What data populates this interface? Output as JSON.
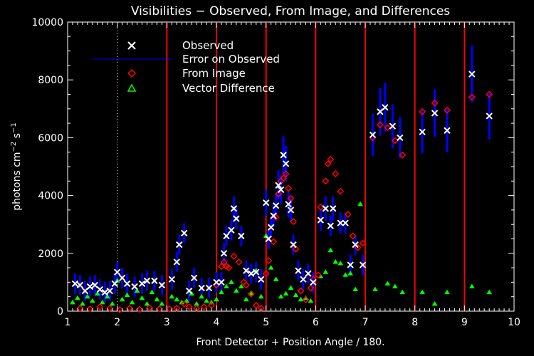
{
  "chart_data": {
    "type": "scatter",
    "title": "Visibilities − Observed, From Image, and Differences",
    "xlabel": "Front Detector + Position Angle / 180.",
    "ylabel_main": "photons cm",
    "ylabel_exp1": "−2",
    "ylabel_mid": " s",
    "ylabel_exp2": "−1",
    "xlim": [
      1,
      10
    ],
    "ylim": [
      0,
      10000
    ],
    "x_ticks": [
      "1",
      "2",
      "3",
      "4",
      "5",
      "6",
      "7",
      "8",
      "9",
      "10"
    ],
    "y_ticks": [
      "0",
      "2000",
      "4000",
      "6000",
      "8000",
      "10000"
    ],
    "red_vertical_lines": [
      3,
      4,
      5,
      6,
      7,
      8,
      9
    ],
    "dotted_vertical_line": 2,
    "colors": {
      "observed": "#ffffff",
      "error": "#0000ff",
      "image": "#ff0000",
      "difference": "#00ff00",
      "frame": "#ffffff",
      "detector_lines": "#ff0000"
    },
    "legend": {
      "placement": "top-left",
      "entries": [
        "Observed",
        "Error on Observed",
        "From Image",
        "Vector Difference"
      ]
    },
    "series": [
      {
        "name": "Observed",
        "marker": "x",
        "points": [
          [
            1.15,
            950
          ],
          [
            1.25,
            900
          ],
          [
            1.35,
            700
          ],
          [
            1.45,
            850
          ],
          [
            1.55,
            900
          ],
          [
            1.65,
            750
          ],
          [
            1.75,
            650
          ],
          [
            1.85,
            700
          ],
          [
            1.95,
            950
          ],
          [
            2.0,
            1350
          ],
          [
            2.1,
            1150
          ],
          [
            2.2,
            950
          ],
          [
            2.35,
            850
          ],
          [
            2.5,
            950
          ],
          [
            2.6,
            1050
          ],
          [
            2.75,
            1050
          ],
          [
            2.9,
            900
          ],
          [
            3.1,
            1100
          ],
          [
            3.2,
            1700
          ],
          [
            3.25,
            2300
          ],
          [
            3.35,
            2700
          ],
          [
            3.45,
            700
          ],
          [
            3.55,
            1150
          ],
          [
            3.7,
            800
          ],
          [
            3.85,
            800
          ],
          [
            4.0,
            1000
          ],
          [
            4.1,
            1000
          ],
          [
            4.15,
            2000
          ],
          [
            4.2,
            2600
          ],
          [
            4.3,
            2800
          ],
          [
            4.35,
            3550
          ],
          [
            4.4,
            3200
          ],
          [
            4.5,
            2600
          ],
          [
            4.6,
            1400
          ],
          [
            4.7,
            1300
          ],
          [
            4.8,
            1350
          ],
          [
            4.9,
            1100
          ],
          [
            5.0,
            3750
          ],
          [
            5.05,
            2500
          ],
          [
            5.1,
            2900
          ],
          [
            5.15,
            3300
          ],
          [
            5.2,
            3650
          ],
          [
            5.25,
            4350
          ],
          [
            5.3,
            4200
          ],
          [
            5.35,
            5400
          ],
          [
            5.4,
            5100
          ],
          [
            5.45,
            3700
          ],
          [
            5.5,
            3500
          ],
          [
            5.55,
            2300
          ],
          [
            5.65,
            1400
          ],
          [
            5.75,
            1100
          ],
          [
            5.85,
            1300
          ],
          [
            5.95,
            1000
          ],
          [
            6.1,
            3150
          ],
          [
            6.2,
            3550
          ],
          [
            6.3,
            2950
          ],
          [
            6.35,
            3550
          ],
          [
            6.5,
            3050
          ],
          [
            6.6,
            3050
          ],
          [
            6.7,
            1600
          ],
          [
            6.8,
            2300
          ],
          [
            6.95,
            1600
          ],
          [
            7.15,
            6100
          ],
          [
            7.3,
            6900
          ],
          [
            7.4,
            7050
          ],
          [
            7.55,
            6400
          ],
          [
            7.7,
            6000
          ],
          [
            8.15,
            6200
          ],
          [
            8.4,
            6850
          ],
          [
            8.65,
            6250
          ],
          [
            9.15,
            8200
          ],
          [
            9.5,
            6750
          ]
        ]
      },
      {
        "name": "From Image",
        "marker": "diamond",
        "points": [
          [
            1.25,
            100
          ],
          [
            1.45,
            80
          ],
          [
            1.65,
            150
          ],
          [
            1.85,
            100
          ],
          [
            2.05,
            50
          ],
          [
            2.25,
            100
          ],
          [
            2.45,
            60
          ],
          [
            2.65,
            120
          ],
          [
            2.85,
            80
          ],
          [
            3.05,
            80
          ],
          [
            3.2,
            100
          ],
          [
            3.35,
            250
          ],
          [
            3.45,
            150
          ],
          [
            3.6,
            100
          ],
          [
            3.75,
            150
          ],
          [
            3.9,
            200
          ],
          [
            4.0,
            900
          ],
          [
            4.1,
            1550
          ],
          [
            4.15,
            1700
          ],
          [
            4.2,
            1550
          ],
          [
            4.25,
            1500
          ],
          [
            4.35,
            1900
          ],
          [
            4.45,
            1700
          ],
          [
            4.55,
            1000
          ],
          [
            4.6,
            900
          ],
          [
            4.7,
            600
          ],
          [
            4.8,
            200
          ],
          [
            4.9,
            100
          ],
          [
            5.0,
            1300
          ],
          [
            5.05,
            1750
          ],
          [
            5.15,
            2400
          ],
          [
            5.2,
            3250
          ],
          [
            5.25,
            4050
          ],
          [
            5.3,
            4500
          ],
          [
            5.35,
            4600
          ],
          [
            5.4,
            4750
          ],
          [
            5.45,
            4250
          ],
          [
            5.5,
            3900
          ],
          [
            5.55,
            3100
          ],
          [
            5.6,
            2150
          ],
          [
            5.7,
            700
          ],
          [
            5.8,
            400
          ],
          [
            5.9,
            800
          ],
          [
            5.95,
            1100
          ],
          [
            6.05,
            1250
          ],
          [
            6.1,
            3600
          ],
          [
            6.2,
            4500
          ],
          [
            6.25,
            5100
          ],
          [
            6.3,
            5250
          ],
          [
            6.4,
            4750
          ],
          [
            6.5,
            4150
          ],
          [
            6.65,
            3350
          ],
          [
            6.75,
            2600
          ],
          [
            6.85,
            2200
          ],
          [
            6.95,
            2350
          ],
          [
            7.15,
            6000
          ],
          [
            7.3,
            6450
          ],
          [
            7.45,
            6350
          ],
          [
            7.6,
            5900
          ],
          [
            7.75,
            5400
          ],
          [
            8.15,
            6900
          ],
          [
            8.4,
            7200
          ],
          [
            8.65,
            6950
          ],
          [
            9.15,
            7400
          ],
          [
            9.5,
            7500
          ]
        ]
      },
      {
        "name": "Vector Difference",
        "marker": "triangle",
        "points": [
          [
            1.1,
            300
          ],
          [
            1.2,
            450
          ],
          [
            1.3,
            250
          ],
          [
            1.4,
            500
          ],
          [
            1.5,
            350
          ],
          [
            1.6,
            600
          ],
          [
            1.7,
            300
          ],
          [
            1.8,
            500
          ],
          [
            1.9,
            250
          ],
          [
            2.0,
            1050
          ],
          [
            2.1,
            400
          ],
          [
            2.2,
            550
          ],
          [
            2.3,
            300
          ],
          [
            2.4,
            700
          ],
          [
            2.5,
            450
          ],
          [
            2.6,
            250
          ],
          [
            2.7,
            650
          ],
          [
            2.8,
            400
          ],
          [
            2.9,
            250
          ],
          [
            3.1,
            500
          ],
          [
            3.2,
            400
          ],
          [
            3.3,
            300
          ],
          [
            3.4,
            350
          ],
          [
            3.5,
            600
          ],
          [
            3.6,
            250
          ],
          [
            3.7,
            500
          ],
          [
            3.8,
            350
          ],
          [
            3.9,
            300
          ],
          [
            4.0,
            400
          ],
          [
            4.1,
            650
          ],
          [
            4.2,
            850
          ],
          [
            4.3,
            1000
          ],
          [
            4.4,
            700
          ],
          [
            4.5,
            850
          ],
          [
            4.6,
            400
          ],
          [
            4.7,
            600
          ],
          [
            4.8,
            1400
          ],
          [
            4.9,
            500
          ],
          [
            5.0,
            2600
          ],
          [
            5.1,
            1500
          ],
          [
            5.2,
            1100
          ],
          [
            5.3,
            500
          ],
          [
            5.4,
            600
          ],
          [
            5.5,
            800
          ],
          [
            5.6,
            550
          ],
          [
            5.7,
            400
          ],
          [
            5.8,
            450
          ],
          [
            5.9,
            350
          ],
          [
            6.1,
            1200
          ],
          [
            6.2,
            1350
          ],
          [
            6.3,
            2100
          ],
          [
            6.4,
            1700
          ],
          [
            6.5,
            1650
          ],
          [
            6.6,
            1250
          ],
          [
            6.7,
            1300
          ],
          [
            6.8,
            750
          ],
          [
            6.9,
            3700
          ],
          [
            7.2,
            750
          ],
          [
            7.45,
            950
          ],
          [
            7.6,
            850
          ],
          [
            7.75,
            650
          ],
          [
            8.15,
            650
          ],
          [
            8.4,
            250
          ],
          [
            8.65,
            650
          ],
          [
            9.15,
            850
          ],
          [
            9.5,
            650
          ]
        ]
      }
    ]
  }
}
